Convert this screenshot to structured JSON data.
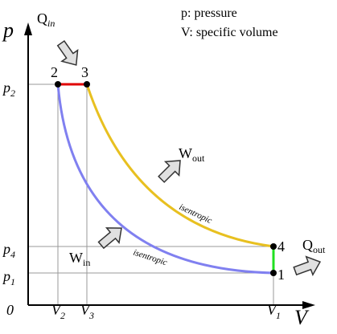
{
  "axes": {
    "y_label": "p",
    "x_label": "V",
    "origin": "0"
  },
  "legend": [
    "p: pressure",
    "V: specific volume"
  ],
  "y_ticks": [
    {
      "main": "p",
      "sub": "2"
    },
    {
      "main": "p",
      "sub": "4"
    },
    {
      "main": "p",
      "sub": "1"
    }
  ],
  "x_ticks": [
    {
      "main": "V",
      "sub": "2"
    },
    {
      "main": "V",
      "sub": "3"
    },
    {
      "main": "V",
      "sub": "1"
    }
  ],
  "points": [
    "1",
    "2",
    "3",
    "4"
  ],
  "flows": {
    "q_in": {
      "main": "Q",
      "sub": "in"
    },
    "w_out": {
      "main": "W",
      "sub": "out"
    },
    "w_in": {
      "main": "W",
      "sub": "in"
    },
    "q_out": {
      "main": "Q",
      "sub": "out"
    }
  },
  "curves": [
    "isentropic",
    "isentropic"
  ]
}
